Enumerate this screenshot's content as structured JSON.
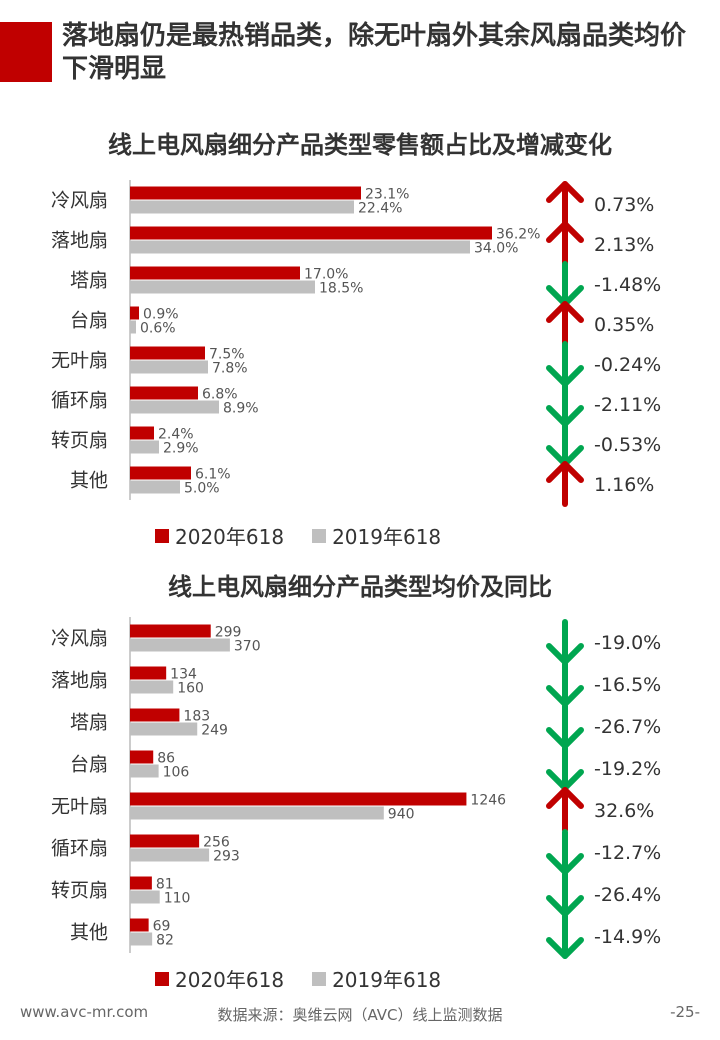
{
  "header": {
    "title": "落地扇仍是最热销品类，除无叶扇外其余风扇品类均价下滑明显"
  },
  "colors": {
    "accent": "#c00000",
    "y2020": "#c00000",
    "y2019": "#bfbfbf",
    "up": "#c00000",
    "down": "#00a650"
  },
  "chart_data": [
    {
      "type": "bar",
      "title": "线上电风扇细分产品类型零售额占比及增减变化",
      "categories": [
        "冷风扇",
        "落地扇",
        "塔扇",
        "台扇",
        "无叶扇",
        "循环扇",
        "转页扇",
        "其他"
      ],
      "series": [
        {
          "name": "2020年618",
          "values": [
            23.1,
            36.2,
            17.0,
            0.9,
            7.5,
            6.8,
            2.4,
            6.1
          ],
          "labels": [
            "23.1%",
            "36.2%",
            "17.0%",
            "0.9%",
            "7.5%",
            "6.8%",
            "2.4%",
            "6.1%"
          ]
        },
        {
          "name": "2019年618",
          "values": [
            22.4,
            34.0,
            18.5,
            0.6,
            7.8,
            8.9,
            2.9,
            5.0
          ],
          "labels": [
            "22.4%",
            "34.0%",
            "18.5%",
            "0.6%",
            "7.8%",
            "8.9%",
            "2.9%",
            "5.0%"
          ]
        }
      ],
      "changes": [
        "0.73%",
        "2.13%",
        "-1.48%",
        "0.35%",
        "-0.24%",
        "-2.11%",
        "-0.53%",
        "1.16%"
      ],
      "change_direction": [
        "up",
        "up",
        "down",
        "up",
        "down",
        "down",
        "down",
        "up"
      ],
      "xlim": [
        0,
        40
      ]
    },
    {
      "type": "bar",
      "title": "线上电风扇细分产品类型均价及同比",
      "categories": [
        "冷风扇",
        "落地扇",
        "塔扇",
        "台扇",
        "无叶扇",
        "循环扇",
        "转页扇",
        "其他"
      ],
      "series": [
        {
          "name": "2020年618",
          "values": [
            299,
            134,
            183,
            86,
            1246,
            256,
            81,
            69
          ],
          "labels": [
            "299",
            "134",
            "183",
            "86",
            "1246",
            "256",
            "81",
            "69"
          ]
        },
        {
          "name": "2019年618",
          "values": [
            370,
            160,
            249,
            106,
            940,
            293,
            110,
            82
          ],
          "labels": [
            "370",
            "160",
            "249",
            "106",
            "940",
            "293",
            "110",
            "82"
          ]
        }
      ],
      "changes": [
        "-19.0%",
        "-16.5%",
        "-26.7%",
        "-19.2%",
        "32.6%",
        "-12.7%",
        "-26.4%",
        "-14.9%"
      ],
      "change_direction": [
        "down",
        "down",
        "down",
        "down",
        "up",
        "down",
        "down",
        "down"
      ],
      "xlim": [
        0,
        1350
      ]
    }
  ],
  "legend": {
    "item1": "2020年618",
    "item2": "2019年618"
  },
  "footer": {
    "website": "www.avc-mr.com",
    "source": "数据来源：奥维云网（AVC）线上监测数据",
    "page": "-25-"
  }
}
